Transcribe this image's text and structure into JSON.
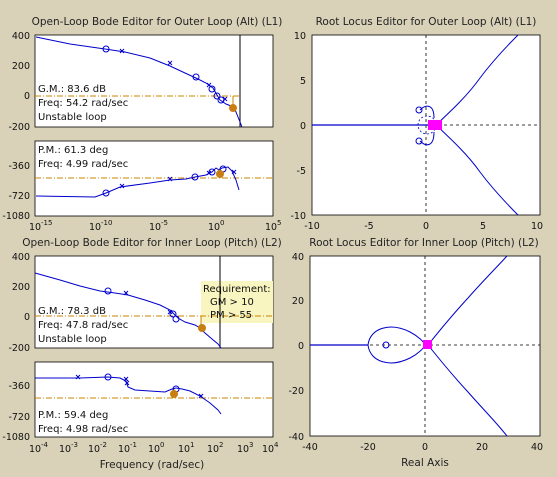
{
  "panels": {
    "bode_outer_title": "Open-Loop Bode Editor for Outer Loop (Alt) (L1)",
    "rlocus_outer_title": "Root Locus Editor for Outer Loop (Alt) (L1)",
    "bode_inner_title": "Open-Loop Bode Editor for Inner Loop (Pitch) (L2)",
    "rlocus_inner_title": "Root Locus Editor for Inner Loop (Pitch) (L2)"
  },
  "outer_mag": {
    "yticks": [
      "400",
      "200",
      "0",
      "-200"
    ],
    "gm_line": "G.M.: 83.6 dB",
    "freq_line": "Freq: 54.2 rad/sec",
    "status_line": "Unstable loop"
  },
  "outer_phase": {
    "yticks": [
      "-360",
      "-720",
      "-1080"
    ],
    "pm_line": "P.M.: 61.3 deg",
    "freq_line": "Freq: 4.99 rad/sec"
  },
  "outer_freq": {
    "ticks": [
      "10",
      "10",
      "10",
      "10",
      "10"
    ],
    "exps": [
      "-15",
      "-10",
      "-5",
      "0",
      "5"
    ]
  },
  "inner_mag": {
    "yticks": [
      "400",
      "200",
      "0",
      "-200"
    ],
    "gm_line": "G.M.: 78.3 dB",
    "freq_line": "Freq: 47.8 rad/sec",
    "status_line": "Unstable loop",
    "req_title": "Requirement:",
    "req_gm": "GM > 10",
    "req_pm": "PM > 55"
  },
  "inner_phase": {
    "yticks": [
      "-360",
      "-720",
      "-1080"
    ],
    "pm_line": "P.M.: 59.4 deg",
    "freq_line": "Freq: 4.98 rad/sec"
  },
  "inner_freq": {
    "ticks": [
      "10",
      "10",
      "10",
      "10",
      "10",
      "10",
      "10",
      "10",
      "10"
    ],
    "exps": [
      "-4",
      "-3",
      "-2",
      "-1",
      "0",
      "1",
      "2",
      "3",
      "4"
    ],
    "xlabel": "Frequency (rad/sec)"
  },
  "rl_outer": {
    "yticks": [
      "10",
      "5",
      "0",
      "-5",
      "-10"
    ],
    "xticks": [
      "-10",
      "-5",
      "0",
      "5",
      "10"
    ]
  },
  "rl_inner": {
    "yticks": [
      "40",
      "20",
      "0",
      "-20",
      "-40"
    ],
    "xticks": [
      "-40",
      "-20",
      "0",
      "20",
      "40"
    ],
    "xlabel": "Real Axis"
  },
  "colors": {
    "background": "#d9d2b9",
    "curve": "#0000cc",
    "margin_line": "#cc8400",
    "pole_marker": "#ff00ff",
    "margin_dot": "#c87e10",
    "requirement_fill": "#f8f5c0"
  }
}
